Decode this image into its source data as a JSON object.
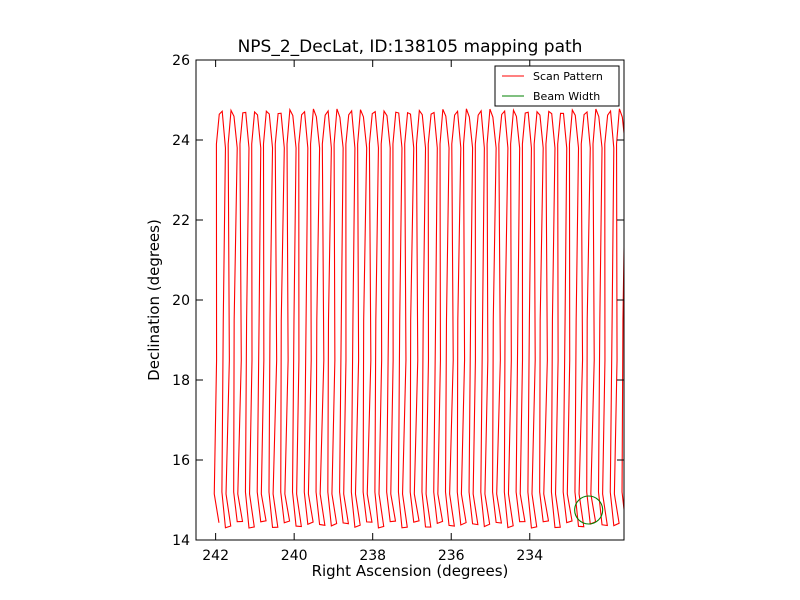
{
  "chart_data": {
    "type": "line",
    "title": "NPS_2_DecLat, ID:138105 mapping path",
    "xlabel": "Right Ascension (degrees)",
    "ylabel": "Declination (degrees)",
    "xlim": [
      242.5,
      231.6
    ],
    "ylim": [
      14,
      26
    ],
    "x_inverted": true,
    "x_ticks": [
      242,
      240,
      238,
      236,
      234
    ],
    "y_ticks": [
      14,
      16,
      18,
      20,
      22,
      24,
      26
    ],
    "x_tick_labels": [
      "242",
      "240",
      "238",
      "236",
      "234"
    ],
    "y_tick_labels": [
      "14",
      "16",
      "18",
      "20",
      "22",
      "24",
      "26"
    ],
    "grid": false,
    "legend_position": "top-right",
    "series": [
      {
        "name": "Scan Pattern",
        "color": "#ff0000",
        "pattern": "zigzag",
        "ra_start": 241.96,
        "ra_end": 231.62,
        "dec_low": 14.4,
        "dec_high": 24.7,
        "dec_lower_turn": 15.2,
        "dec_upper_turn": 23.9,
        "turn_ra_offset": 0.15,
        "num_scan_legs": 70
      },
      {
        "name": "Beam Width",
        "color": "#008000",
        "shape": "circle",
        "center": [
          232.5,
          14.75
        ],
        "radius_dec": 0.35
      }
    ]
  }
}
